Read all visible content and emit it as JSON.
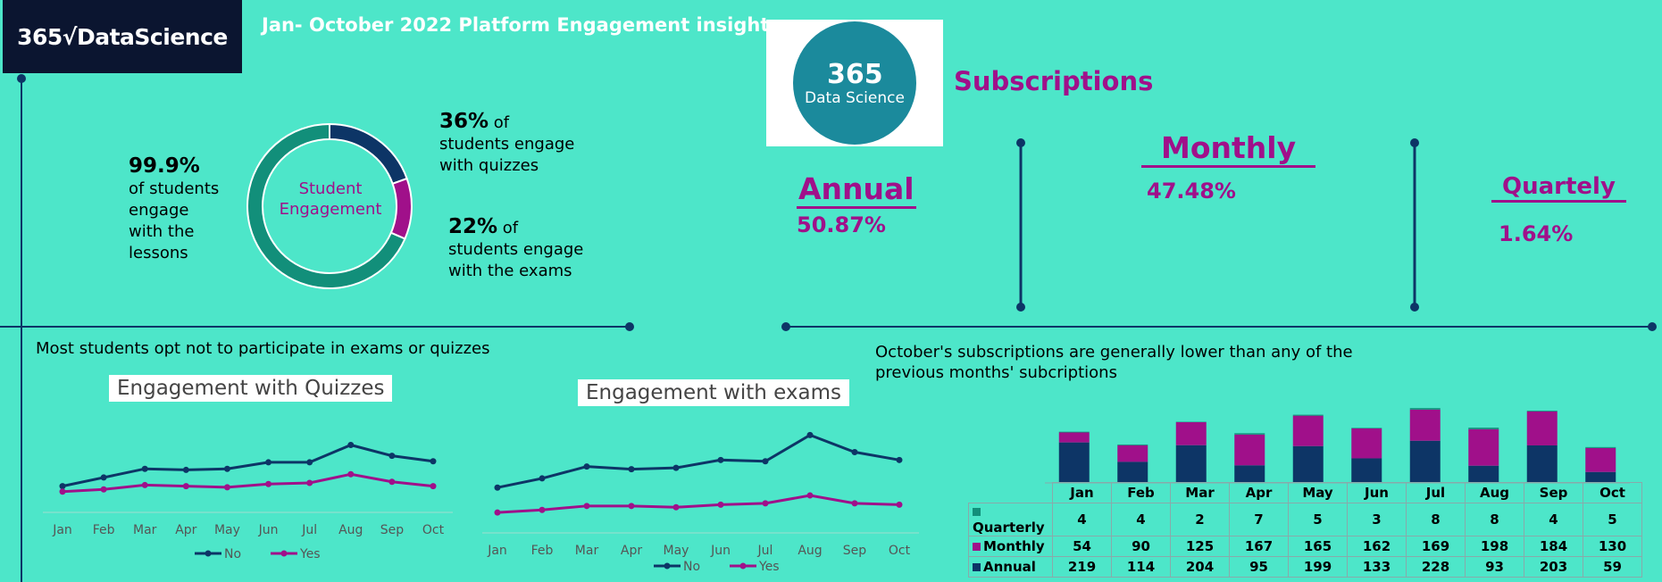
{
  "header": {
    "logo_text": "365√DataScience",
    "title": "Jan- October 2022 Platform Engagement insights"
  },
  "logo2": {
    "line1": "365",
    "line2": "Data Science"
  },
  "donut": {
    "center_label": "Student Engagement",
    "colors": {
      "lessons": "#128f7a",
      "quizzes": "#0d3566",
      "exams": "#a0108a"
    },
    "lessons": {
      "value": "99.9%",
      "text": "of students engage with the lessons"
    },
    "quizzes": {
      "value": "36%",
      "text": "of students engage with quizzes"
    },
    "exams": {
      "value": "22%",
      "text": "of students engage with the exams"
    }
  },
  "subscriptions": {
    "title": "Subscriptions",
    "annual": {
      "name": "Annual",
      "pct": "50.87%"
    },
    "monthly": {
      "name": "Monthly",
      "pct": "47.48%"
    },
    "quarterly": {
      "name": "Quartely",
      "pct": "1.64%"
    }
  },
  "captions": {
    "left": "Most students opt not to participate in exams or quizzes",
    "right_line1": "October's subscriptions are generally lower than any of the",
    "right_line2": "previous months' subcriptions"
  },
  "chart_data": [
    {
      "type": "line",
      "title": "Engagement with Quizzes",
      "x": [
        "Jan",
        "Feb",
        "Mar",
        "Apr",
        "May",
        "Jun",
        "Jul",
        "Aug",
        "Sep",
        "Oct"
      ],
      "series": [
        {
          "name": "No",
          "color": "#0d3566",
          "values": [
            40,
            48,
            56,
            55,
            56,
            62,
            62,
            78,
            68,
            63
          ]
        },
        {
          "name": "Yes",
          "color": "#a0108a",
          "values": [
            35,
            37,
            41,
            40,
            39,
            42,
            43,
            51,
            44,
            40
          ]
        }
      ]
    },
    {
      "type": "line",
      "title": "Engagement with exams",
      "x": [
        "Jan",
        "Feb",
        "Mar",
        "Apr",
        "May",
        "Jun",
        "Jul",
        "Aug",
        "Sep",
        "Oct"
      ],
      "series": [
        {
          "name": "No",
          "color": "#0d3566",
          "values": [
            40,
            47,
            56,
            54,
            55,
            61,
            60,
            80,
            67,
            61
          ]
        },
        {
          "name": "Yes",
          "color": "#a0108a",
          "values": [
            21,
            23,
            26,
            26,
            25,
            27,
            28,
            34,
            28,
            27
          ]
        }
      ]
    },
    {
      "type": "bar",
      "stacked": true,
      "categories": [
        "Jan",
        "Feb",
        "Mar",
        "Apr",
        "May",
        "Jun",
        "Jul",
        "Aug",
        "Sep",
        "Oct"
      ],
      "series": [
        {
          "name": "Annual",
          "color": "#0d3566",
          "values": [
            219,
            114,
            204,
            95,
            199,
            133,
            228,
            93,
            203,
            59
          ]
        },
        {
          "name": "Monthly",
          "color": "#a0108a",
          "values": [
            54,
            90,
            125,
            167,
            165,
            162,
            169,
            198,
            184,
            130
          ]
        },
        {
          "name": "Quarterly",
          "color": "#128f7a",
          "values": [
            4,
            4,
            2,
            7,
            5,
            3,
            8,
            8,
            4,
            5
          ]
        }
      ]
    }
  ]
}
